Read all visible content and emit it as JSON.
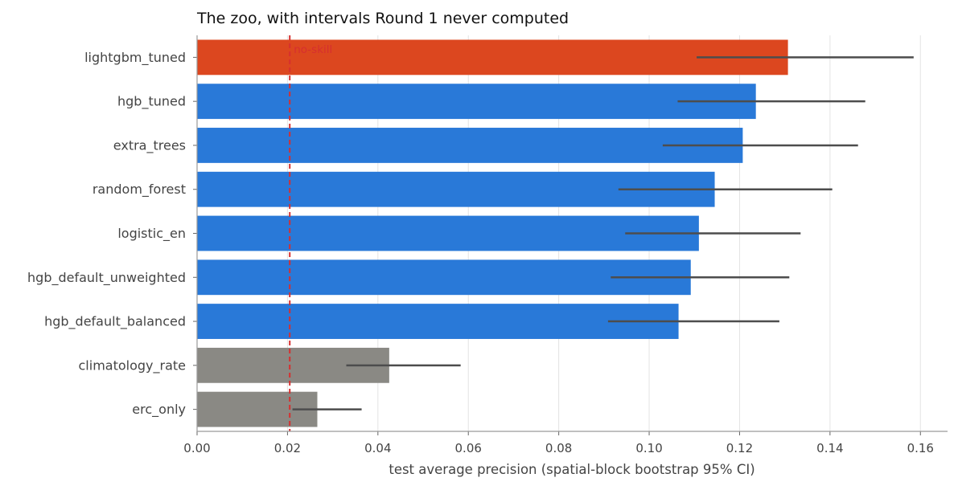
{
  "chart_data": {
    "type": "bar",
    "orientation": "horizontal",
    "title": "The zoo, with intervals Round 1 never computed",
    "xlabel": "test average precision (spatial-block bootstrap 95% CI)",
    "ylabel": "",
    "xlim": [
      0,
      0.166
    ],
    "xticks": [
      0.0,
      0.02,
      0.04,
      0.06,
      0.08,
      0.1,
      0.12,
      0.14,
      0.16
    ],
    "xtick_labels": [
      "0.00",
      "0.02",
      "0.04",
      "0.06",
      "0.08",
      "0.10",
      "0.12",
      "0.14",
      "0.16"
    ],
    "grid": "vertical",
    "categories": [
      "lightgbm_tuned",
      "hgb_tuned",
      "extra_trees",
      "random_forest",
      "logistic_en",
      "hgb_default_unweighted",
      "hgb_default_balanced",
      "climatology_rate",
      "erc_only"
    ],
    "values": [
      0.1307,
      0.1236,
      0.1207,
      0.1145,
      0.111,
      0.1092,
      0.1065,
      0.0425,
      0.0266
    ],
    "ci_low": [
      0.1105,
      0.1063,
      0.103,
      0.0932,
      0.0947,
      0.0915,
      0.0909,
      0.033,
      0.0211
    ],
    "ci_high": [
      0.1585,
      0.1478,
      0.1462,
      0.1405,
      0.1335,
      0.131,
      0.1288,
      0.0583,
      0.0364
    ],
    "bar_colors": [
      "#dc471f",
      "#2979d8",
      "#2979d8",
      "#2979d8",
      "#2979d8",
      "#2979d8",
      "#2979d8",
      "#8a8984",
      "#8a8984"
    ],
    "errorbar_color": "#4d4d4d",
    "reference_line": {
      "value": 0.0205,
      "label": "no-skill",
      "color": "#d62f2f"
    }
  }
}
